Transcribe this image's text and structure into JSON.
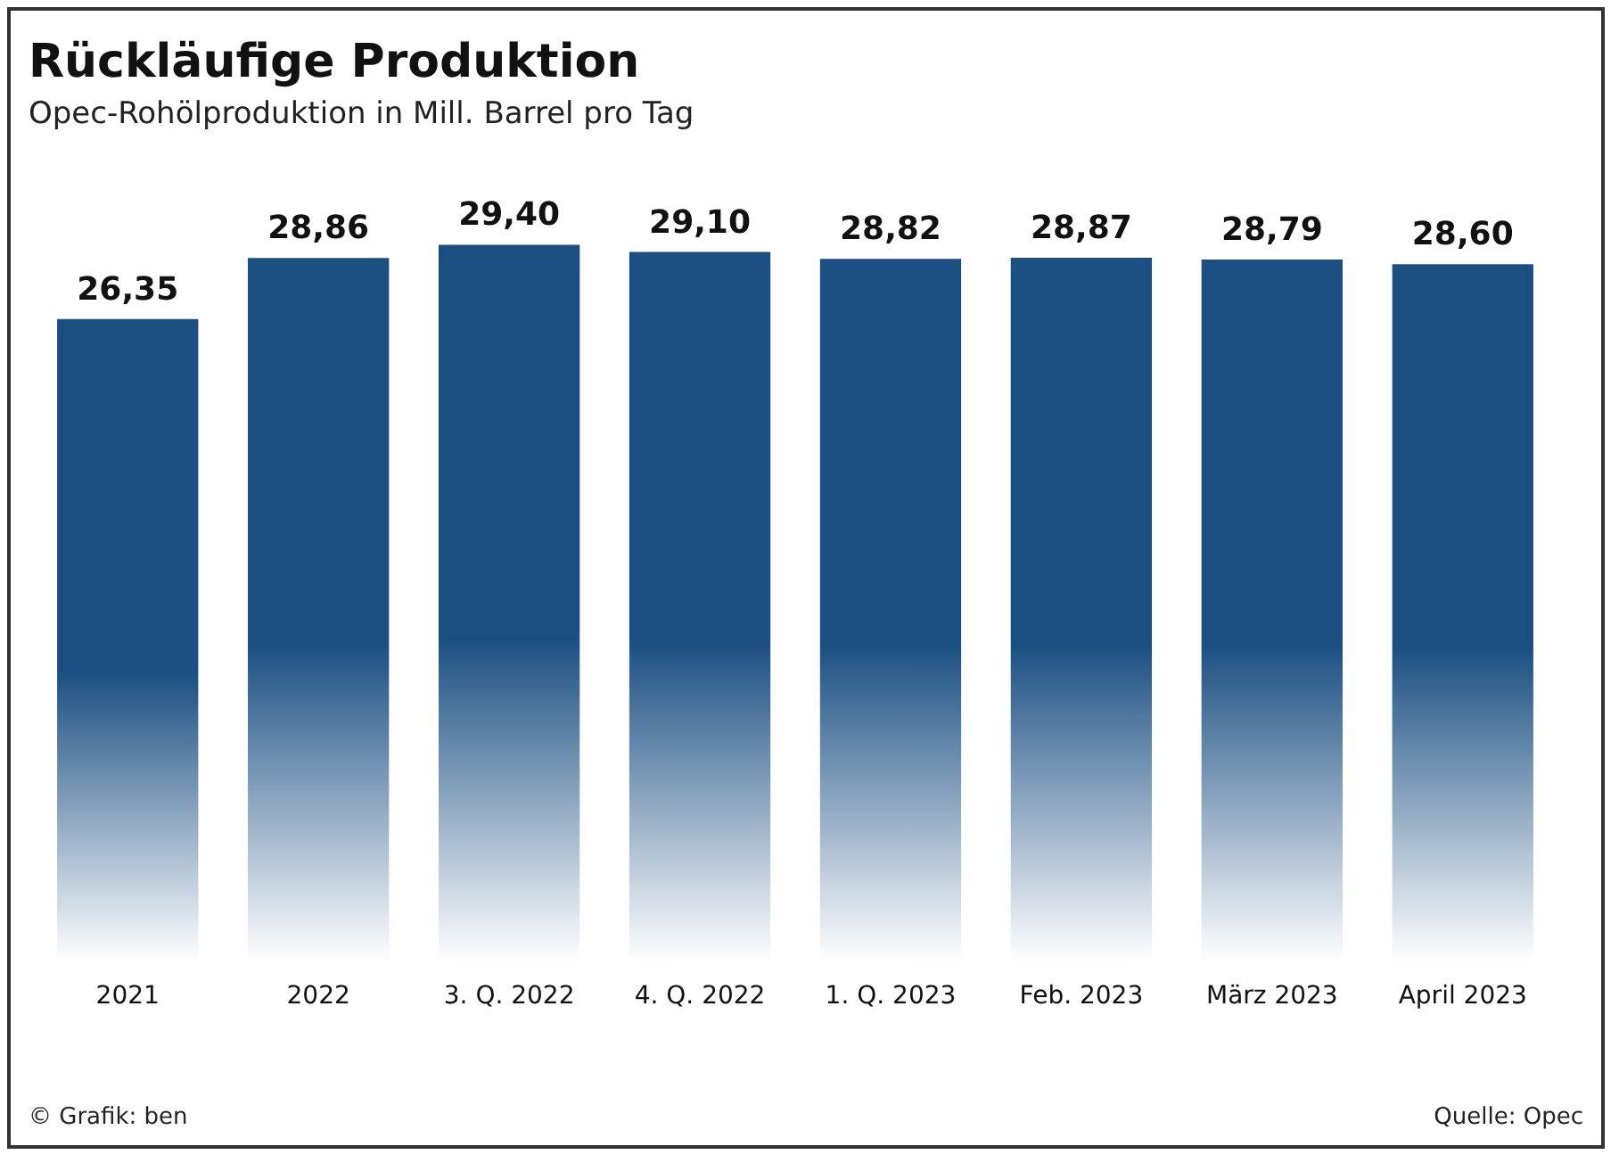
{
  "chart_data": {
    "type": "bar",
    "title": "Rückläufige Produktion",
    "subtitle": "Opec-Rohölproduktion in Mill. Barrel pro Tag",
    "categories": [
      "2021",
      "2022",
      "3. Q. 2022",
      "4. Q. 2022",
      "1. Q. 2023",
      "Feb. 2023",
      "März 2023",
      "April 2023"
    ],
    "values": [
      26.35,
      28.86,
      29.4,
      29.1,
      28.82,
      28.87,
      28.79,
      28.6
    ],
    "color": "#1b4f82",
    "value_labels": [
      "26,35",
      "28,86",
      "29,40",
      "29,10",
      "28,82",
      "28,87",
      "28,79",
      "28,60"
    ],
    "grid": false,
    "annotations": [
      "© Grafik: ben",
      "Quelle: Opec"
    ]
  }
}
